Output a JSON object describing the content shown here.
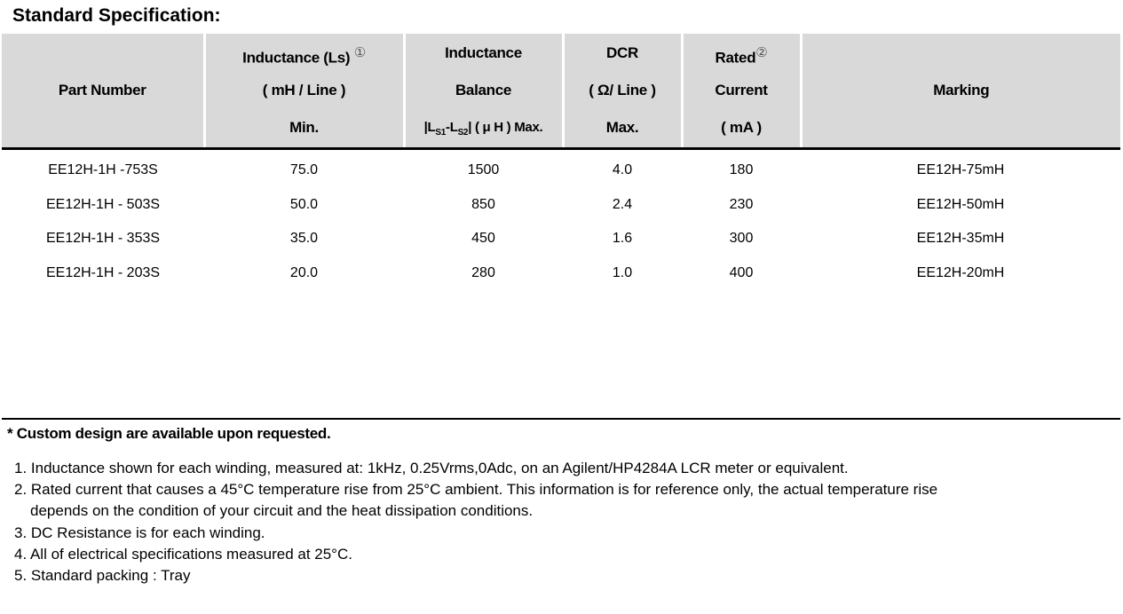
{
  "title": "Standard Specification:",
  "headers": {
    "part": "Part Number",
    "ind1": "Inductance (Ls)",
    "ind_note": "①",
    "ind2": "( mH / Line )",
    "ind3": "Min.",
    "bal1": "Inductance",
    "bal2": "Balance",
    "bal3a": "|L",
    "bal3b": "S1",
    "bal3c": "-L",
    "bal3d": "S2",
    "bal3e": "| ( μ H ) Max.",
    "dcr1": "DCR",
    "dcr2": "( Ω/ Line )",
    "dcr3": "Max.",
    "cur1": "Rated",
    "cur_note": "②",
    "cur2": "Current",
    "cur3": "( mA )",
    "mark": "Marking"
  },
  "rows": [
    [
      "EE12H-1H -753S",
      "75.0",
      "1500",
      "4.0",
      "180",
      "EE12H-75mH"
    ],
    [
      "EE12H-1H - 503S",
      "50.0",
      "850",
      "2.4",
      "230",
      "EE12H-50mH"
    ],
    [
      "EE12H-1H - 353S",
      "35.0",
      "450",
      "1.6",
      "300",
      "EE12H-35mH"
    ],
    [
      "EE12H-1H - 203S",
      "20.0",
      "280",
      "1.0",
      "400",
      "EE12H-20mH"
    ]
  ],
  "custom": "* Custom design are available upon requested.",
  "notes": [
    "1. Inductance shown for each winding, measured at: 1kHz, 0.25Vrms,0Adc, on an Agilent/HP4284A LCR meter or equivalent.",
    "2. Rated current that causes a 45°C temperature rise from 25°C ambient. This information is for reference only,  the actual temperature rise",
    "depends on the condition of your circuit and the heat dissipation conditions.",
    "3. DC Resistance is for each winding.",
    "4. All of electrical specifications measured at 25°C.",
    "5. Standard packing : Tray"
  ]
}
